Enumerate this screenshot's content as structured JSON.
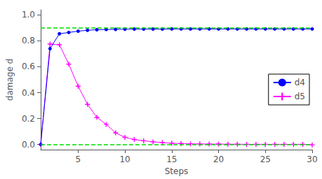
{
  "chart_data": {
    "type": "line",
    "xlabel": "Steps",
    "ylabel": "damage d",
    "x": [
      1,
      2,
      3,
      4,
      5,
      6,
      7,
      8,
      9,
      10,
      11,
      12,
      13,
      14,
      15,
      16,
      17,
      18,
      19,
      20,
      21,
      22,
      23,
      24,
      25,
      26,
      27,
      28,
      29,
      30
    ],
    "series": [
      {
        "name": "d4",
        "color": "#0000ff",
        "marker": "circle",
        "values": [
          0.0,
          0.74,
          0.855,
          0.865,
          0.875,
          0.882,
          0.886,
          0.888,
          0.889,
          0.89,
          0.891,
          0.891,
          0.891,
          0.891,
          0.892,
          0.892,
          0.892,
          0.892,
          0.892,
          0.892,
          0.892,
          0.892,
          0.892,
          0.892,
          0.892,
          0.892,
          0.892,
          0.892,
          0.892,
          0.892
        ]
      },
      {
        "name": "d5",
        "color": "#ff00ff",
        "marker": "plus",
        "values": [
          0.0,
          0.775,
          0.77,
          0.62,
          0.45,
          0.31,
          0.21,
          0.155,
          0.09,
          0.055,
          0.038,
          0.028,
          0.02,
          0.015,
          0.01,
          0.007,
          0.005,
          0.004,
          0.003,
          0.003,
          0.002,
          0.002,
          0.001,
          0.001,
          0.001,
          0.001,
          0.001,
          0.001,
          0.001,
          -0.003
        ]
      }
    ],
    "xlim": [
      1,
      30
    ],
    "ylim": [
      -0.04,
      1.04
    ],
    "xticks": [
      5,
      10,
      15,
      20,
      25,
      30
    ],
    "yticks": [
      {
        "value": 0,
        "label": "0.0"
      },
      0.2,
      0.4,
      0.6,
      0.8,
      {
        "value": 1.0,
        "label": "1.0"
      }
    ],
    "reference_lines": {
      "values": [
        0.0,
        0.9
      ],
      "color": "#00dd00",
      "line_style": "dashed"
    },
    "grid": false,
    "legend": "right"
  }
}
